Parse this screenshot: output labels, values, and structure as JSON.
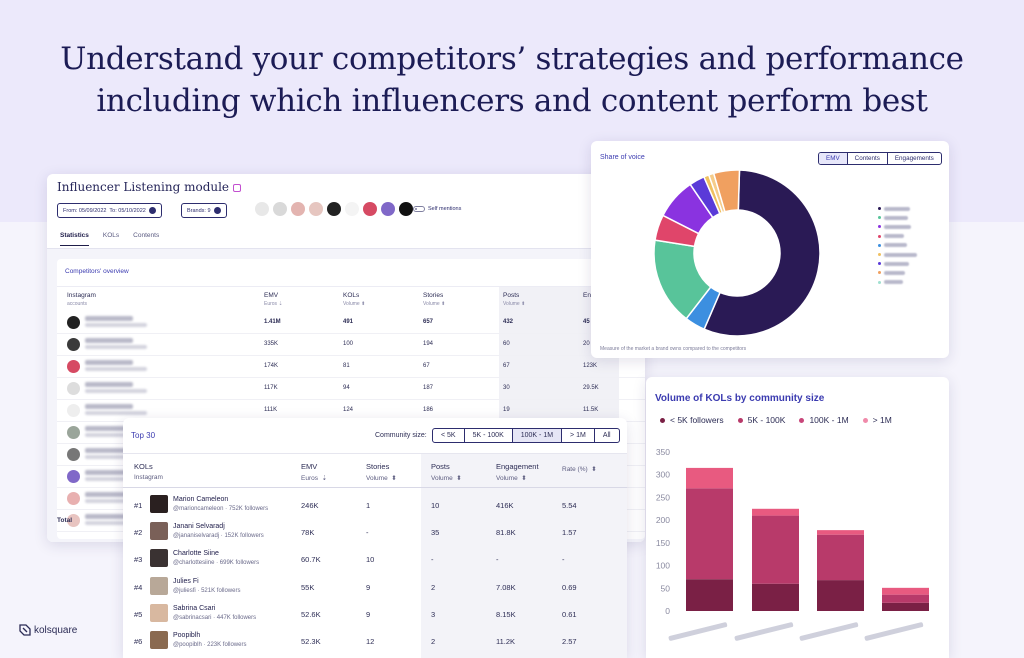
{
  "headline": {
    "line1": "Understand your competitors’ strategies and performance",
    "line2": "including which influencers and content perform best"
  },
  "listening": {
    "title": "Influencer Listening module",
    "from_label": "From:",
    "from": "05/09/2022",
    "to_label": "To:",
    "to": "05/10/2022",
    "brands": "Brands: 9",
    "self_mentions": "Self mentions",
    "tabs": [
      "Statistics",
      "KOLs",
      "Contents"
    ],
    "overview_title": "Competitors' overview",
    "headers": [
      {
        "label": "Instagram",
        "sub": "accounts"
      },
      {
        "label": "EMV",
        "sub": "Euros"
      },
      {
        "label": "KOLs",
        "sub": "Volume"
      },
      {
        "label": "Stories",
        "sub": "Volume"
      },
      {
        "label": "Posts",
        "sub": "Volume"
      },
      {
        "label": "En",
        "sub": ""
      }
    ],
    "rows": [
      {
        "emv": "1.41M",
        "kols": "491",
        "stories": "657",
        "posts": "432",
        "eng": "45",
        "color": "#222"
      },
      {
        "emv": "335K",
        "kols": "100",
        "stories": "194",
        "posts": "60",
        "eng": "20",
        "color": "#3a3a3a"
      },
      {
        "emv": "174K",
        "kols": "81",
        "stories": "67",
        "posts": "67",
        "eng": "123K",
        "color": "#d64a63"
      },
      {
        "emv": "117K",
        "kols": "94",
        "stories": "187",
        "posts": "30",
        "eng": "29.5K",
        "color": "#ddd"
      },
      {
        "emv": "111K",
        "kols": "124",
        "stories": "186",
        "posts": "19",
        "eng": "11.5K",
        "color": "#eee"
      },
      {
        "emv": "",
        "kols": "",
        "stories": "",
        "posts": "",
        "eng": "",
        "color": "#9aa59a"
      },
      {
        "emv": "",
        "kols": "",
        "stories": "",
        "posts": "",
        "eng": "",
        "color": "#777"
      },
      {
        "emv": "",
        "kols": "",
        "stories": "",
        "posts": "",
        "eng": "",
        "color": "#8068c8"
      },
      {
        "emv": "",
        "kols": "",
        "stories": "",
        "posts": "",
        "eng": "",
        "color": "#e8b0b0"
      },
      {
        "emv": "",
        "kols": "",
        "stories": "",
        "posts": "",
        "eng": "",
        "color": "#e8c4c0"
      }
    ],
    "total": "Total"
  },
  "share_of_voice": {
    "title": "Share of voice",
    "tabs": [
      "EMV",
      "Contents",
      "Engagements"
    ],
    "footer": "Measure of the market a brand owns compared to the competitors",
    "chart_data": {
      "type": "pie",
      "values": [
        56,
        4,
        17,
        5,
        8,
        3,
        1,
        1,
        5
      ],
      "colors": [
        "#2a1a55",
        "#3c8fe0",
        "#58c49a",
        "#e0456a",
        "#8a33e0",
        "#5a3ad8",
        "#f0c060",
        "#f5cc8a",
        "#f0a060"
      ]
    },
    "legend_colors": [
      "#2a1a55",
      "#58c49a",
      "#8a33e0",
      "#e0456a",
      "#3c8fe0",
      "#f0c060",
      "#5a3ad8",
      "#f0a060",
      "#a0e0d0"
    ]
  },
  "volume": {
    "title": "Volume of KOLs by community size",
    "legend": [
      {
        "label": "< 5K followers",
        "color": "#7a2045"
      },
      {
        "label": "5K - 100K",
        "color": "#b83a6a"
      },
      {
        "label": "100K - 1M",
        "color": "#c8467a"
      },
      {
        "label": "> 1M",
        "color": "#f08aaa"
      }
    ],
    "chart_data": {
      "type": "bar",
      "stacked": true,
      "ylim": [
        0,
        350
      ],
      "yticks": [
        0,
        50,
        100,
        150,
        200,
        250,
        300,
        350
      ],
      "series": [
        {
          "name": "< 5K followers",
          "values": [
            70,
            60,
            68,
            18
          ],
          "color": "#7a2045"
        },
        {
          "name": "5K - 100K",
          "values": [
            200,
            150,
            100,
            18
          ],
          "color": "#b83a6a"
        },
        {
          "name": "100K - 1M",
          "values": [
            0,
            0,
            0,
            0
          ],
          "color": "#c8467a"
        },
        {
          "name": "> 1M",
          "values": [
            45,
            15,
            10,
            15
          ],
          "color": "#e85a80"
        }
      ]
    }
  },
  "top30": {
    "title": "Top 30",
    "size_label": "Community size:",
    "sizes": [
      "< 5K",
      "5K - 100K",
      "100K - 1M",
      "> 1M",
      "All"
    ],
    "active_size": "100K - 1M",
    "headers": [
      {
        "label": "KOLs",
        "sub": "Instagram"
      },
      {
        "label": "EMV",
        "sub": "Euros"
      },
      {
        "label": "Stories",
        "sub": "Volume"
      },
      {
        "label": "Posts",
        "sub": "Volume"
      },
      {
        "label": "Engagement",
        "sub": "Volume"
      },
      {
        "label": "",
        "sub": "Rate (%)"
      }
    ],
    "rows": [
      {
        "rank": "#1",
        "name": "Marion Cameleon",
        "handle": "@marioncameleon · 752K followers",
        "emv": "246K",
        "stories": "1",
        "posts": "10",
        "eng": "416K",
        "rate": "5.54",
        "color": "#2a2020"
      },
      {
        "rank": "#2",
        "name": "Janani Selvaradj",
        "handle": "@jananiselvaradj · 152K followers",
        "emv": "78K",
        "stories": "-",
        "posts": "35",
        "eng": "81.8K",
        "rate": "1.57",
        "color": "#7a6058"
      },
      {
        "rank": "#3",
        "name": "Charlotte Siine",
        "handle": "@charlottesiine · 699K followers",
        "emv": "60.7K",
        "stories": "10",
        "posts": "-",
        "eng": "-",
        "rate": "-",
        "color": "#3a3232"
      },
      {
        "rank": "#4",
        "name": "Julies Fi",
        "handle": "@juliesfi · 521K followers",
        "emv": "55K",
        "stories": "9",
        "posts": "2",
        "eng": "7.08K",
        "rate": "0.69",
        "color": "#b8a898"
      },
      {
        "rank": "#5",
        "name": "Sabrina Csari",
        "handle": "@sabrinacsari · 447K followers",
        "emv": "52.6K",
        "stories": "9",
        "posts": "3",
        "eng": "8.15K",
        "rate": "0.61",
        "color": "#d8b8a0"
      },
      {
        "rank": "#6",
        "name": "Poopiblh",
        "handle": "@poopiblh · 223K followers",
        "emv": "52.3K",
        "stories": "12",
        "posts": "2",
        "eng": "11.2K",
        "rate": "2.57",
        "color": "#8a6a50"
      }
    ]
  },
  "logo": "kolsquare"
}
